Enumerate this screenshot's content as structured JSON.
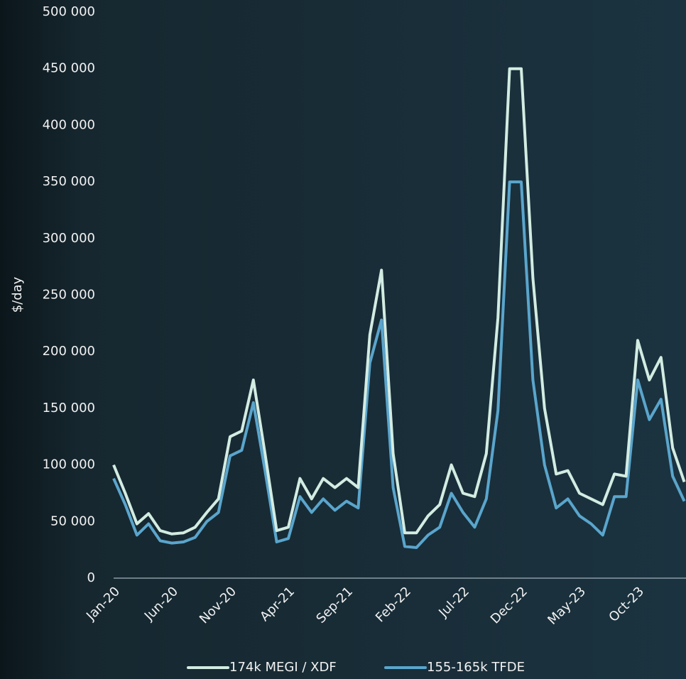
{
  "chart_data": {
    "type": "line",
    "y_label": "$/day",
    "categories": [
      "Jan-20",
      null,
      null,
      null,
      null,
      "Jun-20",
      null,
      null,
      null,
      null,
      "Nov-20",
      null,
      null,
      null,
      null,
      "Apr-21",
      null,
      null,
      null,
      null,
      "Sep-21",
      null,
      null,
      null,
      null,
      "Feb-22",
      null,
      null,
      null,
      null,
      "Jul-22",
      null,
      null,
      null,
      null,
      "Dec-22",
      null,
      null,
      null,
      null,
      "May-23",
      null,
      null,
      null,
      null,
      "Oct-23",
      null,
      null,
      null,
      null
    ],
    "series": [
      {
        "name": "174k MEGI / XDF",
        "color": "#d3ece2",
        "values": [
          100000,
          75000,
          48000,
          57000,
          42000,
          39000,
          40000,
          45000,
          58000,
          70000,
          125000,
          130000,
          175000,
          110000,
          42000,
          45000,
          88000,
          70000,
          88000,
          80000,
          88000,
          80000,
          215000,
          272000,
          110000,
          40000,
          40000,
          55000,
          65000,
          100000,
          75000,
          72000,
          110000,
          230000,
          450000,
          450000,
          265000,
          150000,
          92000,
          95000,
          75000,
          70000,
          65000,
          92000,
          90000,
          210000,
          175000,
          195000,
          115000,
          85000
        ]
      },
      {
        "name": "155-165k TFDE",
        "color": "#5aa5cc",
        "values": [
          88000,
          65000,
          38000,
          48000,
          33000,
          31000,
          32000,
          36000,
          50000,
          58000,
          108000,
          113000,
          155000,
          95000,
          32000,
          35000,
          72000,
          58000,
          70000,
          60000,
          68000,
          62000,
          190000,
          228000,
          80000,
          28000,
          27000,
          38000,
          45000,
          75000,
          58000,
          45000,
          70000,
          148000,
          350000,
          350000,
          175000,
          100000,
          62000,
          70000,
          55000,
          48000,
          38000,
          72000,
          72000,
          175000,
          140000,
          158000,
          90000,
          68000
        ]
      }
    ],
    "ylim": [
      0,
      500000
    ],
    "yticks": [
      0,
      {
        "value": 50000,
        "label": "50 000"
      },
      {
        "value": 100000,
        "label": "100 000"
      },
      {
        "value": 150000,
        "label": "150 000"
      },
      {
        "value": 200000,
        "label": "200 000"
      },
      {
        "value": 250000,
        "label": "250 000"
      },
      {
        "value": 300000,
        "label": "300 000"
      },
      {
        "value": 350000,
        "label": "350 000"
      },
      {
        "value": 400000,
        "label": "400 000"
      },
      {
        "value": 450000,
        "label": "450 000"
      },
      {
        "value": 500000,
        "label": "500 000"
      }
    ],
    "grid": false,
    "legend": "bottom"
  }
}
